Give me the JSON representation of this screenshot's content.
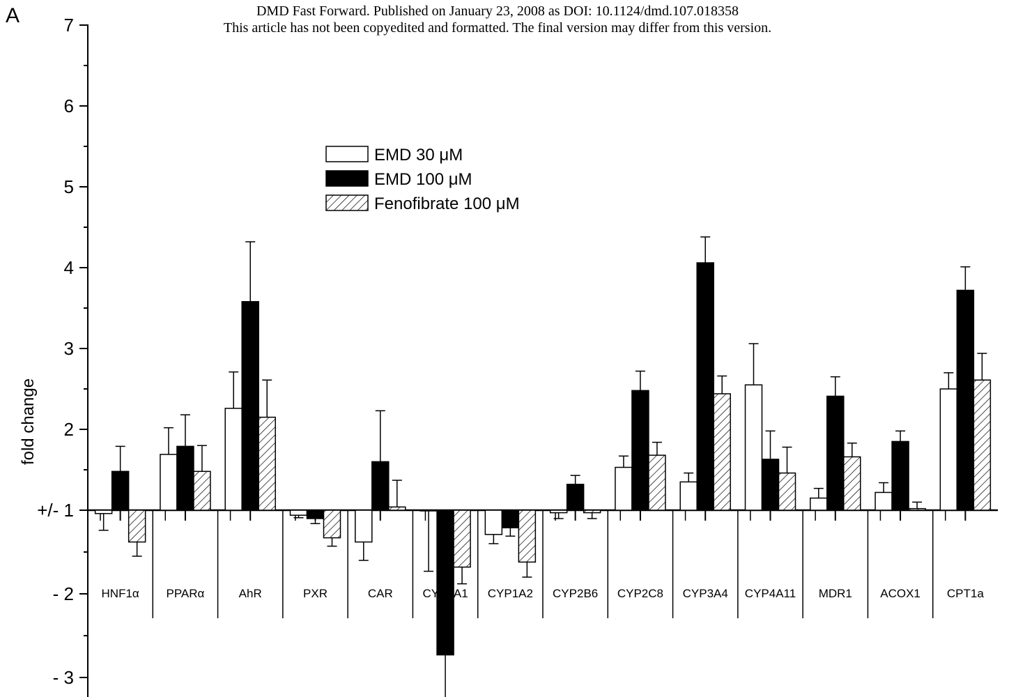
{
  "header": {
    "line1": "DMD Fast Forward. Published on January 23, 2008 as DOI: 10.1124/dmd.107.018358",
    "line2": "This article has not been copyedited and formatted. The final version may differ from this version."
  },
  "panel_label": "A",
  "chart_data": {
    "type": "bar",
    "title": "",
    "xlabel": "",
    "ylabel": "fold change",
    "baseline": 1,
    "ylim": [
      -3.2,
      7
    ],
    "y_ticks": [
      {
        "value": 7,
        "label": "7"
      },
      {
        "value": 6,
        "label": "6"
      },
      {
        "value": 5,
        "label": "5"
      },
      {
        "value": 4,
        "label": "4"
      },
      {
        "value": 3,
        "label": "3"
      },
      {
        "value": 2,
        "label": "2"
      },
      {
        "value": 1,
        "label": "+/- 1"
      },
      {
        "value": -2,
        "label": "- 2"
      },
      {
        "value": -3,
        "label": "- 3"
      }
    ],
    "categories": [
      "HNF1α",
      "PPARα",
      "AhR",
      "PXR",
      "CAR",
      "CYP1A1",
      "CYP1A2",
      "CYP2B6",
      "CYP2C8",
      "CYP3A4",
      "CYP4A11",
      "MDR1",
      "ACOX1",
      "CPT1a"
    ],
    "series": [
      {
        "name": "EMD 30 μM",
        "fill": "white",
        "values": [
          -1.04,
          1.69,
          2.26,
          -1.06,
          -1.38,
          -1.0,
          -1.29,
          -1.03,
          1.53,
          1.35,
          2.55,
          1.15,
          1.22,
          2.5
        ],
        "errors": [
          0.2,
          0.33,
          0.45,
          0.03,
          0.22,
          0.73,
          0.11,
          0.07,
          0.14,
          0.11,
          0.51,
          0.12,
          0.12,
          0.2
        ]
      },
      {
        "name": "EMD 100 μM",
        "fill": "black",
        "values": [
          1.48,
          1.79,
          3.58,
          -1.1,
          1.6,
          -2.73,
          -1.21,
          1.32,
          2.48,
          4.06,
          1.63,
          2.41,
          1.85,
          3.72
        ],
        "errors": [
          0.31,
          0.39,
          0.74,
          0.06,
          0.63,
          0.52,
          0.1,
          0.11,
          0.24,
          0.32,
          0.35,
          0.24,
          0.13,
          0.29
        ]
      },
      {
        "name": "Fenofibrate 100 μM",
        "fill": "hatched",
        "values": [
          -1.38,
          1.48,
          2.15,
          -1.33,
          1.04,
          -1.68,
          -1.62,
          -1.03,
          1.68,
          2.44,
          1.46,
          1.66,
          1.02,
          2.61
        ],
        "errors": [
          0.17,
          0.32,
          0.46,
          0.1,
          0.33,
          0.2,
          0.18,
          0.07,
          0.16,
          0.22,
          0.32,
          0.17,
          0.08,
          0.33
        ]
      }
    ],
    "legend_position": "upper-left",
    "grid": false
  }
}
